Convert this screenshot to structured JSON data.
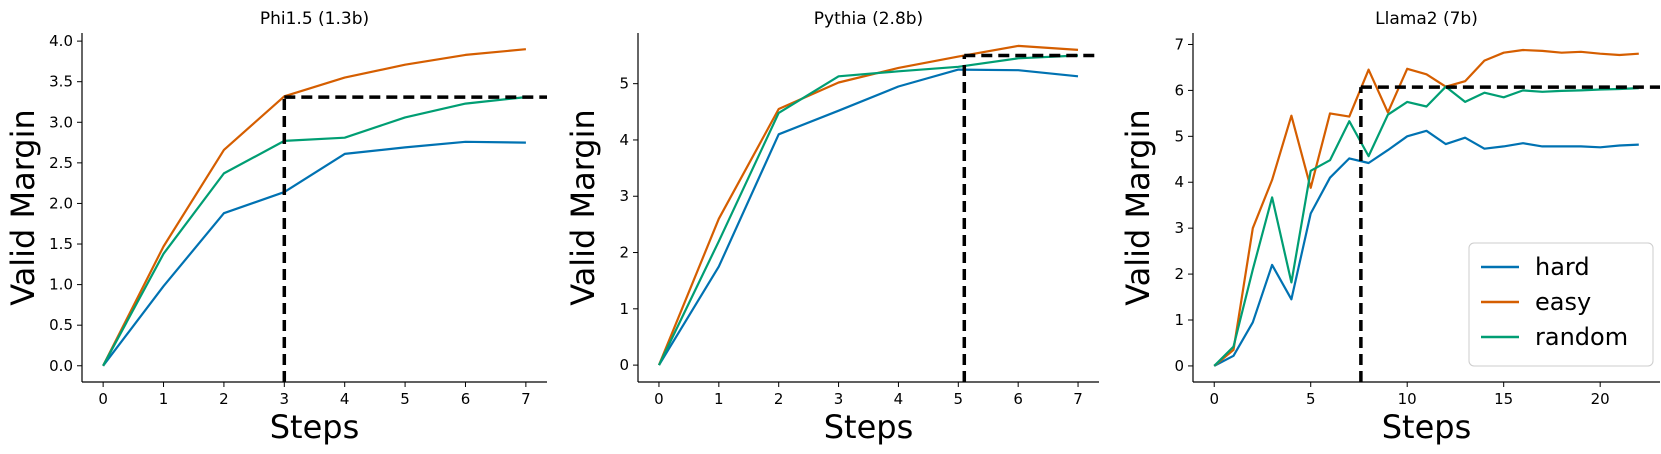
{
  "chart_data": [
    {
      "type": "line",
      "title": "Phi1.5 (1.3b)",
      "xlabel": "Steps",
      "ylabel": "Valid Margin",
      "xlim": [
        -0.35,
        7.35
      ],
      "ylim": [
        -0.2,
        4.1
      ],
      "xticks": [
        0,
        1,
        2,
        3,
        4,
        5,
        6,
        7
      ],
      "yticks": [
        "0.0",
        "0.5",
        "1.0",
        "1.5",
        "2.0",
        "2.5",
        "3.0",
        "3.5",
        "4.0"
      ],
      "series": [
        {
          "name": "hard",
          "color": "#0072b2",
          "x": [
            0,
            1,
            2,
            3,
            4,
            5,
            6,
            7
          ],
          "y": [
            0,
            0.98,
            1.88,
            2.14,
            2.61,
            2.69,
            2.76,
            2.75
          ]
        },
        {
          "name": "easy",
          "color": "#d55e00",
          "x": [
            0,
            1,
            2,
            3,
            4,
            5,
            6,
            7
          ],
          "y": [
            0,
            1.47,
            2.66,
            3.32,
            3.55,
            3.71,
            3.83,
            3.9
          ]
        },
        {
          "name": "random",
          "color": "#009e73",
          "x": [
            0,
            1,
            2,
            3,
            4,
            5,
            6,
            7
          ],
          "y": [
            0,
            1.38,
            2.37,
            2.77,
            2.81,
            3.06,
            3.23,
            3.31
          ]
        }
      ],
      "reference": {
        "x": 3.0,
        "y": 3.31
      }
    },
    {
      "type": "line",
      "title": "Pythia (2.8b)",
      "xlabel": "Steps",
      "ylabel": "Valid Margin",
      "xlim": [
        -0.35,
        7.35
      ],
      "ylim": [
        -0.3,
        5.9
      ],
      "xticks": [
        0,
        1,
        2,
        3,
        4,
        5,
        6,
        7
      ],
      "yticks": [
        "0",
        "1",
        "2",
        "3",
        "4",
        "5"
      ],
      "series": [
        {
          "name": "hard",
          "color": "#0072b2",
          "x": [
            0,
            1,
            2,
            3,
            4,
            5,
            6,
            7
          ],
          "y": [
            0,
            1.75,
            4.1,
            4.52,
            4.95,
            5.25,
            5.24,
            5.13
          ]
        },
        {
          "name": "easy",
          "color": "#d55e00",
          "x": [
            0,
            1,
            2,
            3,
            4,
            5,
            6,
            7
          ],
          "y": [
            0,
            2.6,
            4.55,
            5.02,
            5.28,
            5.48,
            5.67,
            5.6
          ]
        },
        {
          "name": "random",
          "color": "#009e73",
          "x": [
            0,
            1,
            2,
            3,
            4,
            5,
            6,
            7
          ],
          "y": [
            0,
            2.2,
            4.48,
            5.13,
            5.22,
            5.3,
            5.45,
            5.5
          ]
        }
      ],
      "reference": {
        "x": 5.1,
        "y": 5.5
      }
    },
    {
      "type": "line",
      "title": "Llama2 (7b)",
      "xlabel": "Steps",
      "ylabel": "Valid Margin",
      "xlim": [
        -1.1,
        23.1
      ],
      "ylim": [
        -0.35,
        7.25
      ],
      "xticks": [
        0,
        5,
        10,
        15,
        20
      ],
      "yticks": [
        "0",
        "1",
        "2",
        "3",
        "4",
        "5",
        "6",
        "7"
      ],
      "legend": {
        "position": "lower-right",
        "entries": [
          "hard",
          "easy",
          "random"
        ]
      },
      "series": [
        {
          "name": "hard",
          "color": "#0072b2",
          "x": [
            0,
            1,
            2,
            3,
            4,
            5,
            6,
            7,
            8,
            9,
            10,
            11,
            12,
            13,
            14,
            15,
            16,
            17,
            18,
            19,
            20,
            21,
            22
          ],
          "y": [
            0,
            0.22,
            0.95,
            2.2,
            1.45,
            3.32,
            4.1,
            4.52,
            4.42,
            4.7,
            5.0,
            5.12,
            4.83,
            4.97,
            4.73,
            4.78,
            4.85,
            4.78,
            4.78,
            4.78,
            4.76,
            4.8,
            4.82
          ]
        },
        {
          "name": "easy",
          "color": "#d55e00",
          "x": [
            0,
            1,
            2,
            3,
            4,
            5,
            6,
            7,
            8,
            9,
            10,
            11,
            12,
            13,
            14,
            15,
            16,
            17,
            18,
            19,
            20,
            21,
            22
          ],
          "y": [
            0,
            0.35,
            3.0,
            4.05,
            5.45,
            3.88,
            5.5,
            5.43,
            6.45,
            5.52,
            6.47,
            6.35,
            6.08,
            6.2,
            6.65,
            6.82,
            6.88,
            6.86,
            6.82,
            6.84,
            6.8,
            6.77,
            6.8
          ]
        },
        {
          "name": "random",
          "color": "#009e73",
          "x": [
            0,
            1,
            2,
            3,
            4,
            5,
            6,
            7,
            8,
            9,
            10,
            11,
            12,
            13,
            14,
            15,
            16,
            17,
            18,
            19,
            20,
            21,
            22
          ],
          "y": [
            0,
            0.42,
            2.1,
            3.67,
            1.82,
            4.25,
            4.48,
            5.33,
            4.57,
            5.47,
            5.75,
            5.65,
            6.08,
            5.75,
            5.95,
            5.85,
            6.0,
            5.97,
            5.99,
            6.0,
            6.02,
            6.03,
            6.05
          ]
        }
      ],
      "reference": {
        "x": 7.6,
        "y": 6.07
      }
    }
  ]
}
